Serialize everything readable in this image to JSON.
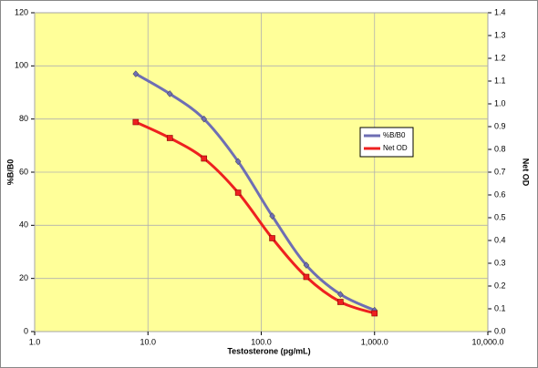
{
  "chart_data": {
    "type": "line",
    "x_label": "Testosterone (pg/mL)",
    "y_label": "%B/B0",
    "y2_label": "Net OD",
    "x": [
      7.8,
      15.6,
      31.25,
      62.5,
      125,
      250,
      500,
      1000
    ],
    "xlog": true,
    "xlim": [
      1,
      10000
    ],
    "xticks": [
      {
        "value": 1,
        "label": "1.0"
      },
      {
        "value": 10,
        "label": "10.0"
      },
      {
        "value": 100,
        "label": "100.0"
      },
      {
        "value": 1000,
        "label": "1,000.0"
      },
      {
        "value": 10000,
        "label": "10,000.0"
      }
    ],
    "ylim": [
      0,
      120
    ],
    "yticks": [
      0,
      20,
      40,
      60,
      80,
      100,
      120
    ],
    "y2lim": [
      0,
      1.4
    ],
    "y2ticks": [
      {
        "value": 0,
        "label": "0.0"
      },
      0.1,
      0.2,
      0.3,
      0.4,
      0.5,
      0.6,
      0.7,
      0.8,
      0.9,
      {
        "value": 1,
        "label": "1.0"
      },
      1.1,
      1.2,
      1.3,
      1.4
    ],
    "grid": true,
    "background": "#ffff99",
    "legend": "center-right",
    "series": [
      {
        "name": "%B/B0",
        "color": "#6e6eb4",
        "marker": "diamond",
        "values": [
          97,
          89.5,
          80,
          64,
          43.5,
          25,
          14,
          8
        ]
      },
      {
        "name": "Net OD",
        "color": "#ee2020",
        "marker": "square",
        "axis": "y2",
        "values": [
          0.92,
          0.85,
          0.76,
          0.61,
          0.41,
          0.24,
          0.13,
          0.08
        ]
      }
    ]
  }
}
